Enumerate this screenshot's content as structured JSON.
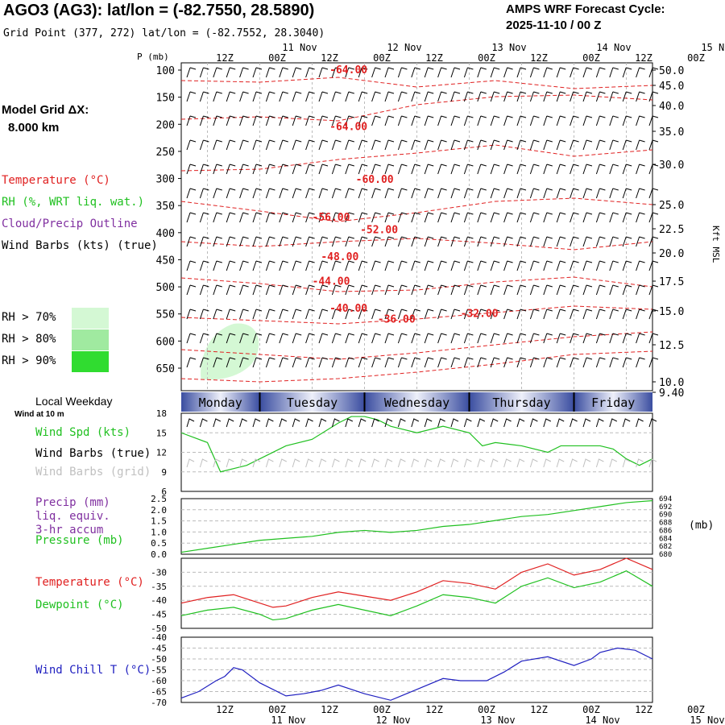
{
  "header": {
    "title": "AGO3 (AG3):  lat/lon = (-82.7550, 28.5890)",
    "subtitle": "Grid Point (377, 272) lat/lon = (-82.7552, 28.3040)",
    "cycle_line1": "AMPS WRF Forecast Cycle:",
    "cycle_line2": "2025-11-10 / 00  Z"
  },
  "sidebar": {
    "model_grid_line1": "Model Grid ΔX:",
    "model_grid_line2": "8.000 km",
    "legend": [
      {
        "label": "Temperature (°C)",
        "color": "#e02020"
      },
      {
        "label": "RH (%, WRT liq. wat.)",
        "color": "#20c020"
      },
      {
        "label": "Cloud/Precip Outline",
        "color": "#8030a0"
      },
      {
        "label": "Wind Barbs (kts) (true)",
        "color": "#000000"
      }
    ],
    "rh_levels": [
      {
        "label": "RH > 70%",
        "color": "#d4f8d4"
      },
      {
        "label": "RH > 80%",
        "color": "#a0eaa0"
      },
      {
        "label": "RH > 90%",
        "color": "#30dc30"
      }
    ],
    "local_weekday_label": "Local Weekday",
    "wind_at_10m": "Wind at 10 m"
  },
  "time_axis": {
    "top_ticks": [
      "12Z",
      "00Z",
      "12Z",
      "00Z",
      "12Z",
      "00Z",
      "12Z",
      "00Z",
      "12Z",
      "00Z"
    ],
    "dates": [
      "11 Nov",
      "12 Nov",
      "13 Nov",
      "14 Nov",
      "15 Nov"
    ],
    "weekdays": [
      "Monday",
      "Tuesday",
      "Wednesday",
      "Thursday",
      "Friday"
    ]
  },
  "chart_data": [
    {
      "type": "line",
      "panel": "cross-section",
      "ylabel": "P (mb)",
      "y_ticks": [
        100,
        150,
        200,
        250,
        300,
        350,
        400,
        450,
        500,
        550,
        600,
        650
      ],
      "right_ticks": [
        "50.0",
        "45.0",
        "40.0",
        "35.0",
        "30.0",
        "25.0",
        "22.5",
        "20.0",
        "17.5",
        "15.0",
        "12.5",
        "10.0",
        "9.40"
      ],
      "right_label": "Kft MSL",
      "temperature_labels": [
        {
          "text": "-64.00",
          "hour": 34,
          "p": 100
        },
        {
          "text": "-64.00",
          "hour": 34,
          "p": 205
        },
        {
          "text": "-60.00",
          "hour": 40,
          "p": 302
        },
        {
          "text": "-56.00",
          "hour": 30,
          "p": 372
        },
        {
          "text": "-52.00",
          "hour": 41,
          "p": 395
        },
        {
          "text": "-48.00",
          "hour": 32,
          "p": 445
        },
        {
          "text": "-44.00",
          "hour": 30,
          "p": 490
        },
        {
          "text": "-40.00",
          "hour": 34,
          "p": 540
        },
        {
          "text": "-36.00",
          "hour": 45,
          "p": 560
        },
        {
          "text": "-32.00",
          "hour": 64,
          "p": 550
        }
      ]
    },
    {
      "type": "line",
      "panel": "wind",
      "series": [
        {
          "name": "Wind Spd (kts)",
          "color": "#20c020",
          "x": [
            0,
            6,
            9,
            12,
            15,
            18,
            24,
            30,
            36,
            39,
            42,
            45,
            48,
            54,
            60,
            66,
            69,
            72,
            78,
            84,
            87,
            90,
            96,
            99,
            102,
            105,
            108
          ],
          "values": [
            15,
            13.5,
            9,
            9.5,
            10,
            11,
            13,
            14,
            16.5,
            17.5,
            17.5,
            17,
            16,
            15,
            16,
            15,
            13,
            13.5,
            13,
            12,
            13,
            13,
            13,
            12.5,
            11,
            10,
            11
          ]
        }
      ],
      "y_ticks": [
        6,
        9,
        12,
        15,
        18
      ],
      "labels": [
        "Wind Spd (kts)",
        "Wind Barbs (true)",
        "Wind Barbs (grid)"
      ],
      "label_colors": [
        "#20c020",
        "#000000",
        "#c0c0c0"
      ]
    },
    {
      "type": "line",
      "panel": "precip-pressure",
      "series": [
        {
          "name": "Pressure (mb)",
          "color": "#20c020",
          "x": [
            0,
            6,
            12,
            18,
            24,
            30,
            36,
            42,
            48,
            54,
            60,
            66,
            72,
            78,
            84,
            90,
            96,
            102,
            108
          ],
          "values": [
            680.5,
            681.5,
            682.5,
            683.5,
            684,
            684.5,
            685.5,
            686,
            685.5,
            686,
            687,
            687.5,
            688.5,
            689.5,
            690,
            691,
            692,
            693,
            693.5
          ]
        }
      ],
      "y_ticks": [
        "0.0",
        "0.5",
        "1.0",
        "1.5",
        "2.0",
        "2.5"
      ],
      "right_ticks": [
        "680",
        "682",
        "684",
        "686",
        "688",
        "690",
        "692",
        "694"
      ],
      "right_unit": "(mb)",
      "labels": [
        "Precip (mm)",
        "liq. equiv.",
        "3-hr accum",
        "Pressure (mb)"
      ],
      "label_colors": [
        "#8030a0",
        "#8030a0",
        "#8030a0",
        "#20c020"
      ]
    },
    {
      "type": "line",
      "panel": "temperature",
      "series": [
        {
          "name": "Temperature (°C)",
          "color": "#e02020",
          "x": [
            0,
            6,
            12,
            18,
            21,
            24,
            30,
            36,
            42,
            48,
            54,
            60,
            66,
            72,
            78,
            84,
            90,
            96,
            102,
            108
          ],
          "values": [
            -41,
            -39,
            -38,
            -41,
            -42.5,
            -42,
            -39,
            -37,
            -38.5,
            -40,
            -37,
            -33,
            -34,
            -36,
            -30,
            -27,
            -31,
            -29,
            -25,
            -29
          ]
        },
        {
          "name": "Dewpoint (°C)",
          "color": "#20c020",
          "x": [
            0,
            6,
            12,
            18,
            21,
            24,
            30,
            36,
            42,
            48,
            54,
            60,
            66,
            72,
            78,
            84,
            90,
            96,
            102,
            108
          ],
          "values": [
            -45.5,
            -43.5,
            -42.5,
            -45,
            -47,
            -46.5,
            -43.5,
            -41.5,
            -43.5,
            -45.5,
            -42,
            -38,
            -39,
            -41,
            -35,
            -32,
            -35.5,
            -33.5,
            -29.5,
            -35
          ]
        }
      ],
      "y_ticks": [
        -50,
        -45,
        -40,
        -35,
        -30
      ],
      "labels": [
        "Temperature (°C)",
        "Dewpoint (°C)"
      ],
      "label_colors": [
        "#e02020",
        "#20c020"
      ]
    },
    {
      "type": "line",
      "panel": "wind-chill",
      "series": [
        {
          "name": "Wind Chill T (°C)",
          "color": "#2020c0",
          "x": [
            0,
            4,
            8,
            10,
            12,
            14,
            18,
            24,
            28,
            32,
            36,
            42,
            48,
            54,
            60,
            64,
            70,
            74,
            78,
            84,
            90,
            94,
            96,
            100,
            104,
            108
          ],
          "values": [
            -68,
            -65,
            -60,
            -58,
            -54,
            -55,
            -61,
            -67,
            -66,
            -64.5,
            -62,
            -66,
            -69,
            -64,
            -59,
            -60,
            -60,
            -56,
            -51,
            -49,
            -53,
            -50,
            -47,
            -45,
            -46,
            -50
          ]
        }
      ],
      "y_ticks": [
        -70,
        -65,
        -60,
        -55,
        -50,
        -45,
        -40
      ],
      "labels": [
        "Wind Chill T (°C)"
      ],
      "label_colors": [
        "#2020c0"
      ]
    }
  ]
}
